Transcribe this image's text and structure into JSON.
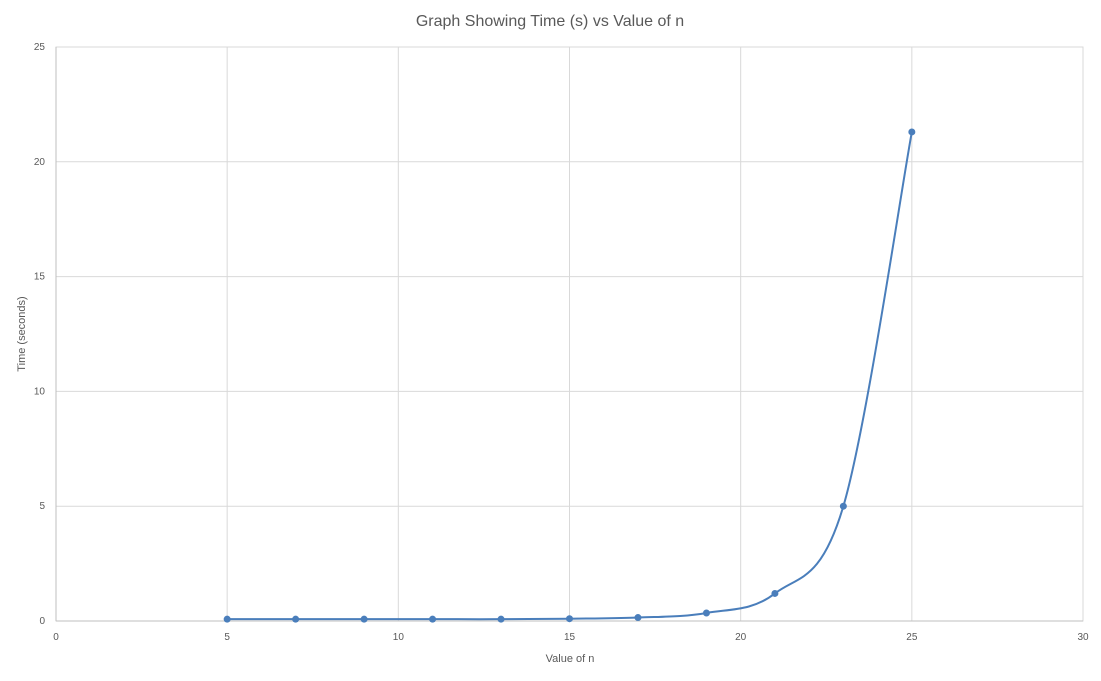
{
  "chart_data": {
    "type": "scatter",
    "title": "Graph Showing Time (s) vs Value of n",
    "xlabel": "Value of n",
    "ylabel": "Time (seconds)",
    "xlim": [
      0,
      30
    ],
    "ylim": [
      0,
      25
    ],
    "x_ticks": [
      "0",
      "5",
      "10",
      "15",
      "20",
      "25",
      "30"
    ],
    "y_ticks": [
      "0",
      "5",
      "10",
      "15",
      "20",
      "25"
    ],
    "grid": true,
    "smooth_line": true,
    "series": [
      {
        "color": "#4a7ebb",
        "x": [
          5,
          7,
          9,
          11,
          13,
          15,
          17,
          19,
          21,
          23,
          25
        ],
        "y": [
          0.08,
          0.08,
          0.08,
          0.08,
          0.08,
          0.1,
          0.15,
          0.35,
          1.2,
          5.0,
          21.3
        ]
      }
    ]
  }
}
